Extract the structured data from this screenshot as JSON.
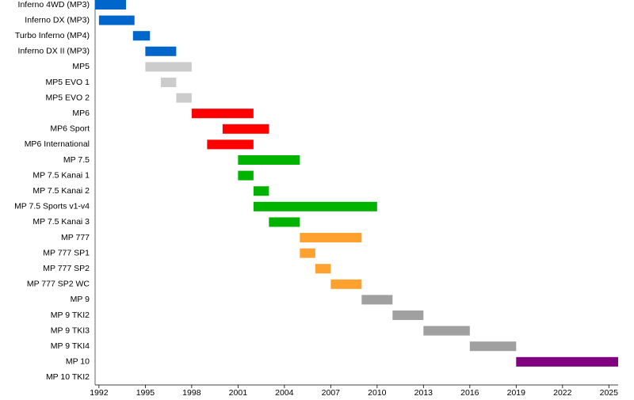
{
  "chart_data": {
    "type": "timeline",
    "categories": [
      "Inferno 4WD (MP3)",
      "Inferno DX (MP3)",
      "Turbo Inferno (MP4)",
      "Inferno DX II (MP3)",
      "MP5",
      "MP5 EVO 1",
      "MP5 EVO 2",
      "MP6",
      "MP6 Sport",
      "MP6 International",
      "MP 7.5",
      "MP 7.5 Kanai 1",
      "MP 7.5 Kanai 2",
      "MP 7.5 Sports v1-v4",
      "MP 7.5 Kanai 3",
      "MP 777",
      "MP 777 SP1",
      "MP 777 SP2",
      "MP 777 SP2 WC",
      "MP 9",
      "MP 9 TKI2",
      "MP 9 TKI3",
      "MP 9 TKI4",
      "MP 10",
      "MP 10 TKI2"
    ],
    "start": [
      1991.75,
      1992,
      1994.2,
      1995,
      1995,
      1996,
      1997,
      1998,
      2000,
      1999,
      2001,
      2001,
      2002,
      2002,
      2003,
      2005,
      2005,
      2006,
      2007,
      2009,
      2011,
      2013,
      2016,
      2019,
      null
    ],
    "end": [
      1993.75,
      1994.3,
      1995.3,
      1997,
      1998,
      1997,
      1998,
      2002,
      2003,
      2002,
      2005,
      2002,
      2003,
      2010,
      2005,
      2009,
      2006,
      2007,
      2009,
      2011,
      2013,
      2016,
      2019,
      2025.6,
      null
    ],
    "colors": [
      "#0066cc",
      "#0066cc",
      "#0066cc",
      "#0066cc",
      "#cccccc",
      "#cccccc",
      "#cccccc",
      "#ff0000",
      "#ff0000",
      "#ff0000",
      "#00b300",
      "#00b300",
      "#00b300",
      "#00b300",
      "#00b300",
      "#ffa12f",
      "#ffa12f",
      "#ffa12f",
      "#ffa12f",
      "#a0a0a0",
      "#a0a0a0",
      "#a0a0a0",
      "#a0a0a0",
      "#800080",
      null
    ],
    "xlim": [
      1991.75,
      2025.6
    ],
    "xticks": [
      1992,
      1995,
      1998,
      2001,
      2004,
      2007,
      2010,
      2013,
      2016,
      2019,
      2022,
      2025
    ]
  }
}
